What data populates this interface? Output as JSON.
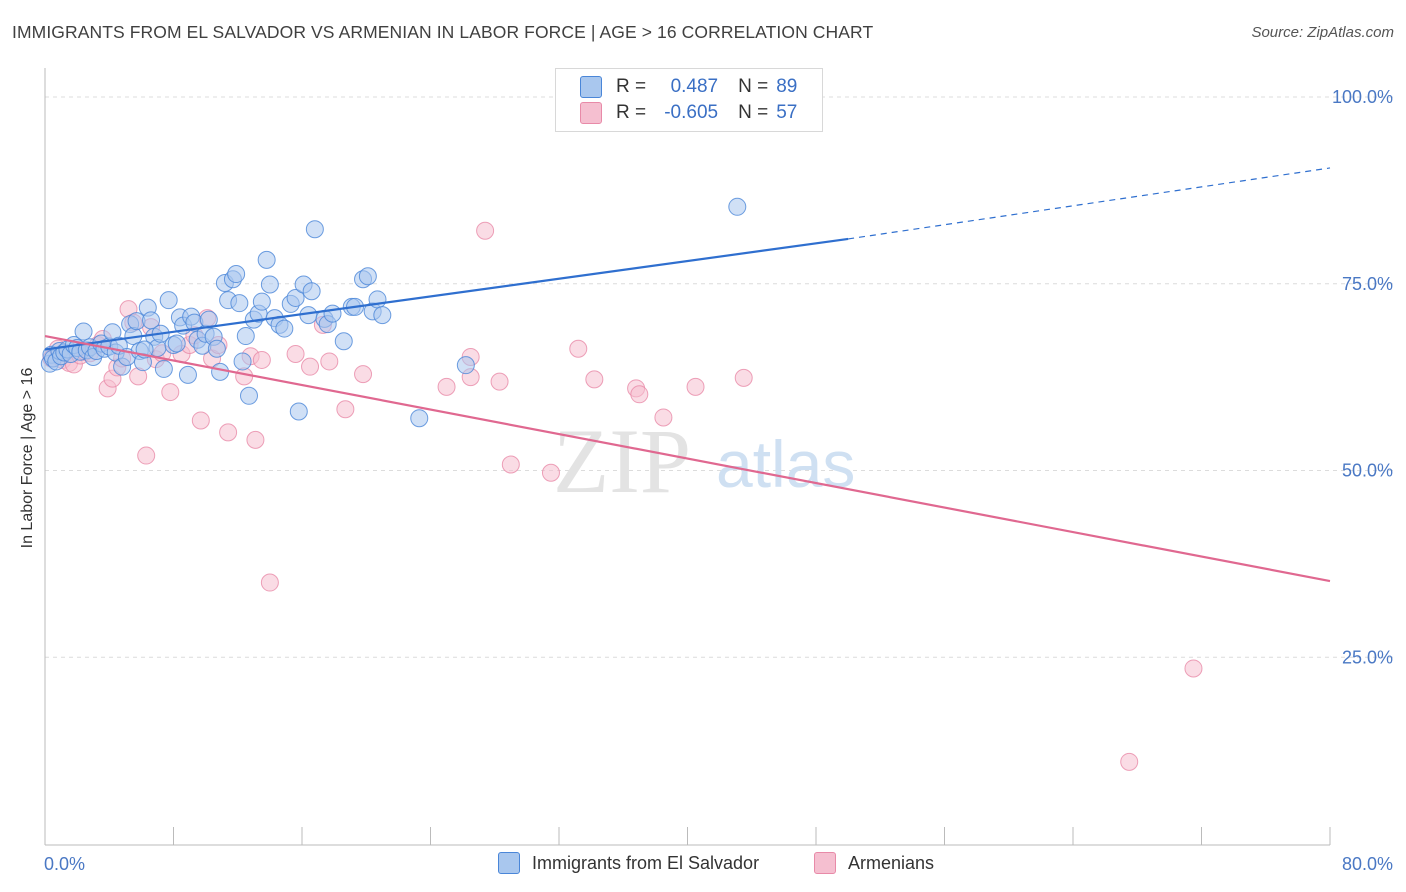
{
  "header": {
    "title": "IMMIGRANTS FROM EL SALVADOR VS ARMENIAN IN LABOR FORCE | AGE > 16 CORRELATION CHART",
    "source": "Source: ZipAtlas.com"
  },
  "watermark": {
    "zip": "ZIP",
    "atlas": "atlas"
  },
  "legend_stats": [
    {
      "r_label": "R =",
      "r_value": "0.487",
      "n_label": "N =",
      "n_value": "89"
    },
    {
      "r_label": "R =",
      "r_value": "-0.605",
      "n_label": "N =",
      "n_value": "57"
    }
  ],
  "colors": {
    "blue": "#4a86d8",
    "blue_fill": "#a9c7ee",
    "blue_line": "#2f6fcf",
    "pink": "#e88aa8",
    "pink_fill": "#f5bfd0",
    "pink_line": "#e06890",
    "tick": "#4a78c4"
  },
  "chart_data": {
    "type": "scatter",
    "title": "IMMIGRANTS FROM EL SALVADOR VS ARMENIAN IN LABOR FORCE | AGE > 16 CORRELATION CHART",
    "xlabel": "",
    "ylabel": "In Labor Force | Age > 16",
    "xlim": [
      0,
      80
    ],
    "ylim": [
      0,
      105
    ],
    "x_tick_labels": [
      "0.0%",
      "80.0%"
    ],
    "y_ticks": [
      25,
      50,
      75,
      100
    ],
    "y_tick_labels": [
      "25.0%",
      "50.0%",
      "75.0%",
      "100.0%"
    ],
    "grid": true,
    "legend_position": "bottom",
    "series": [
      {
        "name": "Immigrants from El Salvador",
        "color": "#4a86d8",
        "trend": {
          "x0": 0,
          "y0": 66.2,
          "x1": 50,
          "y1": 81.0,
          "dashed_to_x": 80,
          "dashed_to_y": 90.5
        },
        "points": [
          [
            0.3,
            64.3
          ],
          [
            0.4,
            65.5
          ],
          [
            0.5,
            65.0
          ],
          [
            0.7,
            64.6
          ],
          [
            0.9,
            66.0
          ],
          [
            1.0,
            65.3
          ],
          [
            1.2,
            65.8
          ],
          [
            1.4,
            66.2
          ],
          [
            1.6,
            65.6
          ],
          [
            1.8,
            66.8
          ],
          [
            2.0,
            66.4
          ],
          [
            2.2,
            65.9
          ],
          [
            2.4,
            68.6
          ],
          [
            2.6,
            66.1
          ],
          [
            2.8,
            66.5
          ],
          [
            3.0,
            65.2
          ],
          [
            3.2,
            66.0
          ],
          [
            3.5,
            67.0
          ],
          [
            3.7,
            66.3
          ],
          [
            4.0,
            66.6
          ],
          [
            4.2,
            68.5
          ],
          [
            4.4,
            65.8
          ],
          [
            4.6,
            66.7
          ],
          [
            4.8,
            63.9
          ],
          [
            5.1,
            65.2
          ],
          [
            5.3,
            69.6
          ],
          [
            5.5,
            68.0
          ],
          [
            5.7,
            70.0
          ],
          [
            5.9,
            66.0
          ],
          [
            6.1,
            64.5
          ],
          [
            6.4,
            71.8
          ],
          [
            6.6,
            70.1
          ],
          [
            6.8,
            67.9
          ],
          [
            7.0,
            66.4
          ],
          [
            7.2,
            68.3
          ],
          [
            7.4,
            63.6
          ],
          [
            7.7,
            72.8
          ],
          [
            8.0,
            66.8
          ],
          [
            8.2,
            67.0
          ],
          [
            8.4,
            70.5
          ],
          [
            8.6,
            69.4
          ],
          [
            8.9,
            62.8
          ],
          [
            9.1,
            70.6
          ],
          [
            9.3,
            69.8
          ],
          [
            9.5,
            67.5
          ],
          [
            9.8,
            66.7
          ],
          [
            10.0,
            68.3
          ],
          [
            10.2,
            70.2
          ],
          [
            10.5,
            67.9
          ],
          [
            10.7,
            66.3
          ],
          [
            10.9,
            63.2
          ],
          [
            11.2,
            75.1
          ],
          [
            11.4,
            72.8
          ],
          [
            11.7,
            75.6
          ],
          [
            11.9,
            76.3
          ],
          [
            12.1,
            72.4
          ],
          [
            12.3,
            64.6
          ],
          [
            12.5,
            68.0
          ],
          [
            12.7,
            60.0
          ],
          [
            13.0,
            70.2
          ],
          [
            13.3,
            71.0
          ],
          [
            13.5,
            72.6
          ],
          [
            13.8,
            78.2
          ],
          [
            14.0,
            74.9
          ],
          [
            14.3,
            70.4
          ],
          [
            14.6,
            69.5
          ],
          [
            14.9,
            69.0
          ],
          [
            15.3,
            72.3
          ],
          [
            15.6,
            73.1
          ],
          [
            15.8,
            57.9
          ],
          [
            16.1,
            74.9
          ],
          [
            16.4,
            70.8
          ],
          [
            16.6,
            74.0
          ],
          [
            16.8,
            82.3
          ],
          [
            17.4,
            70.3
          ],
          [
            17.6,
            69.6
          ],
          [
            17.9,
            71.0
          ],
          [
            18.6,
            67.3
          ],
          [
            19.1,
            71.9
          ],
          [
            19.3,
            71.9
          ],
          [
            19.8,
            75.6
          ],
          [
            20.1,
            76.0
          ],
          [
            20.4,
            71.3
          ],
          [
            20.7,
            72.9
          ],
          [
            21.0,
            70.8
          ],
          [
            23.3,
            57.0
          ],
          [
            26.2,
            64.1
          ],
          [
            43.1,
            85.3
          ],
          [
            6.2,
            66.2
          ]
        ]
      },
      {
        "name": "Armenians",
        "color": "#e88aa8",
        "trend": {
          "x0": 0,
          "y0": 68.0,
          "x1": 80,
          "y1": 35.2
        },
        "points": [
          [
            0.4,
            65.0
          ],
          [
            0.8,
            66.3
          ],
          [
            1.1,
            64.8
          ],
          [
            1.5,
            64.4
          ],
          [
            1.8,
            64.2
          ],
          [
            2.2,
            65.4
          ],
          [
            2.5,
            65.9
          ],
          [
            2.8,
            65.7
          ],
          [
            3.3,
            66.8
          ],
          [
            3.6,
            67.6
          ],
          [
            3.9,
            61.0
          ],
          [
            4.2,
            62.3
          ],
          [
            4.5,
            63.8
          ],
          [
            4.8,
            65.0
          ],
          [
            5.2,
            71.6
          ],
          [
            5.5,
            69.8
          ],
          [
            5.8,
            62.6
          ],
          [
            6.3,
            52.0
          ],
          [
            6.6,
            69.2
          ],
          [
            6.9,
            64.9
          ],
          [
            7.3,
            65.7
          ],
          [
            7.8,
            60.5
          ],
          [
            8.5,
            65.6
          ],
          [
            9.0,
            66.8
          ],
          [
            9.3,
            68.1
          ],
          [
            9.7,
            56.7
          ],
          [
            10.1,
            70.4
          ],
          [
            10.4,
            65.0
          ],
          [
            10.8,
            66.8
          ],
          [
            11.4,
            55.1
          ],
          [
            12.4,
            62.6
          ],
          [
            12.8,
            65.3
          ],
          [
            13.1,
            54.1
          ],
          [
            13.5,
            64.8
          ],
          [
            14.0,
            35.0
          ],
          [
            15.6,
            65.6
          ],
          [
            16.5,
            63.9
          ],
          [
            17.3,
            69.5
          ],
          [
            17.7,
            64.6
          ],
          [
            18.7,
            58.2
          ],
          [
            19.8,
            62.9
          ],
          [
            25.0,
            61.2
          ],
          [
            26.5,
            65.2
          ],
          [
            27.4,
            82.1
          ],
          [
            28.3,
            61.9
          ],
          [
            29.0,
            50.8
          ],
          [
            31.5,
            49.7
          ],
          [
            33.2,
            66.3
          ],
          [
            34.2,
            62.2
          ],
          [
            36.8,
            61.0
          ],
          [
            37.0,
            60.2
          ],
          [
            38.5,
            57.1
          ],
          [
            40.5,
            61.2
          ],
          [
            43.5,
            62.4
          ],
          [
            71.5,
            23.5
          ],
          [
            67.5,
            11.0
          ],
          [
            26.5,
            62.5
          ]
        ]
      }
    ]
  },
  "bottom_legend": [
    {
      "label": "Immigrants from El Salvador"
    },
    {
      "label": "Armenians"
    }
  ]
}
